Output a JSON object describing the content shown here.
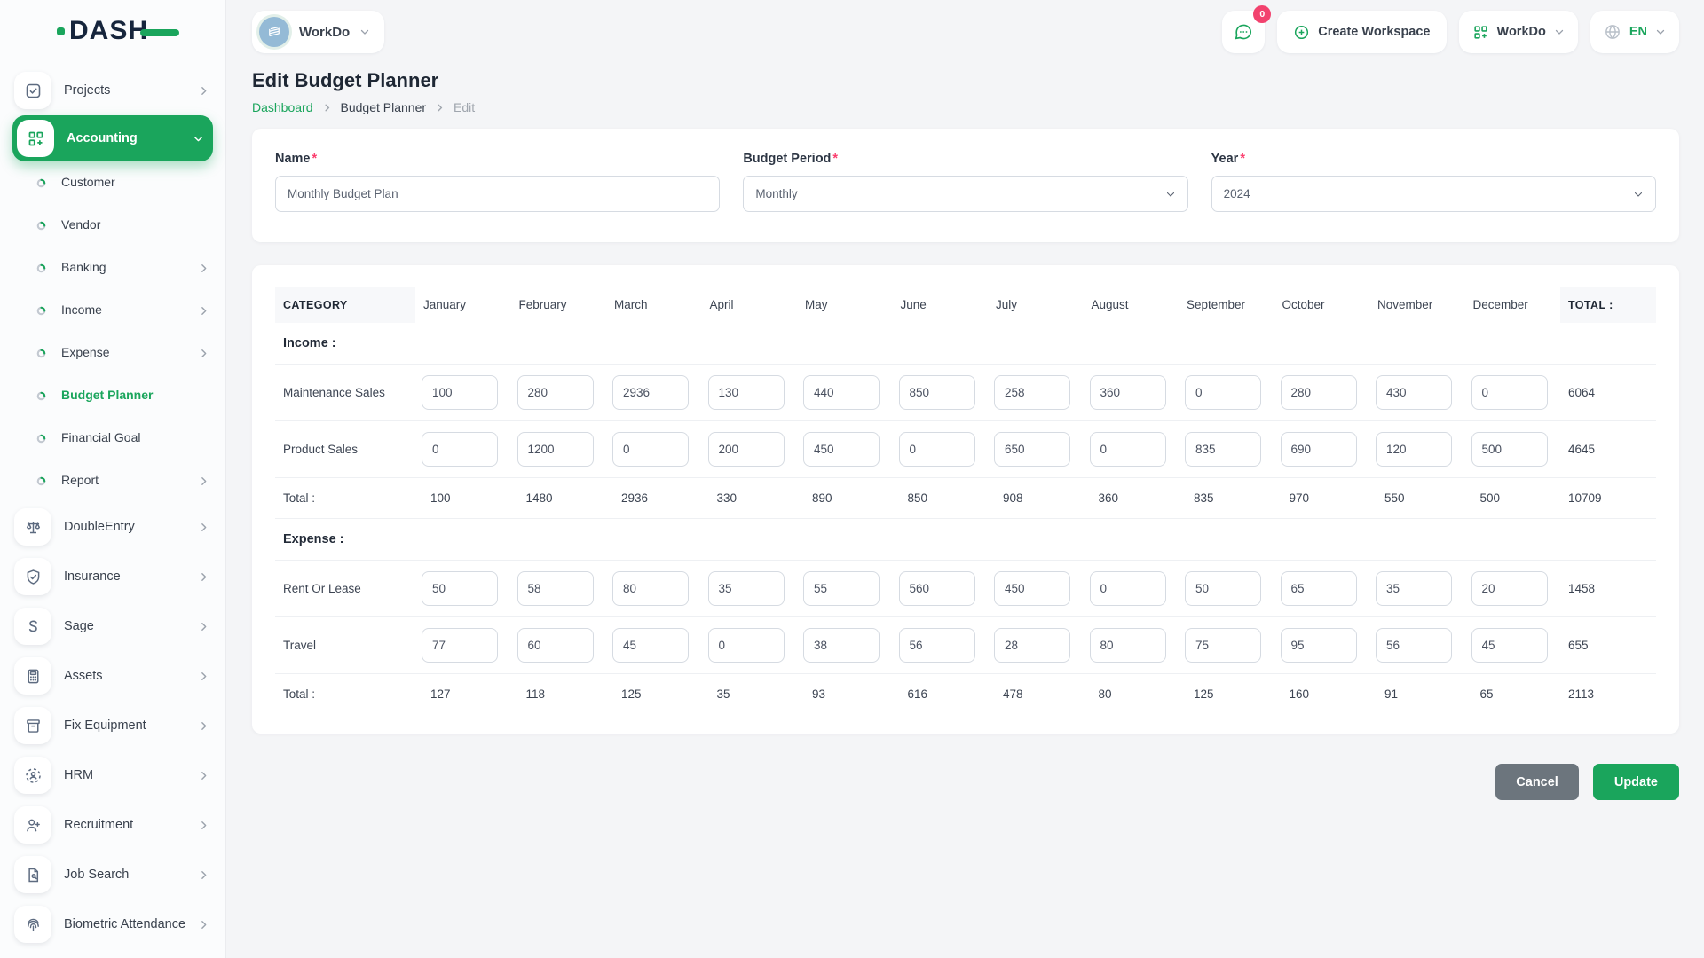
{
  "brand": {
    "logo_text": "DASH"
  },
  "topbar": {
    "workspace_selector": "WorkDo",
    "messages_badge": "0",
    "create_workspace_label": "Create Workspace",
    "workspace_menu_label": "WorkDo",
    "language_label": "EN"
  },
  "sidebar": {
    "items": [
      {
        "label": "Projects",
        "icon": "checkbox-icon",
        "level": "top",
        "chevron": "right",
        "active": false
      },
      {
        "label": "Accounting",
        "icon": "grid-plus-icon",
        "level": "top",
        "chevron": "down",
        "active": true
      },
      {
        "label": "Customer",
        "icon": "bullet-icon",
        "level": "sub",
        "chevron": "",
        "active": false
      },
      {
        "label": "Vendor",
        "icon": "bullet-icon",
        "level": "sub",
        "chevron": "",
        "active": false
      },
      {
        "label": "Banking",
        "icon": "bullet-icon",
        "level": "sub",
        "chevron": "right",
        "active": false
      },
      {
        "label": "Income",
        "icon": "bullet-icon",
        "level": "sub",
        "chevron": "right",
        "active": false
      },
      {
        "label": "Expense",
        "icon": "bullet-icon",
        "level": "sub",
        "chevron": "right",
        "active": false
      },
      {
        "label": "Budget Planner",
        "icon": "bullet-icon",
        "level": "sub",
        "chevron": "",
        "active": true
      },
      {
        "label": "Financial Goal",
        "icon": "bullet-icon",
        "level": "sub",
        "chevron": "",
        "active": false
      },
      {
        "label": "Report",
        "icon": "bullet-icon",
        "level": "sub",
        "chevron": "right",
        "active": false
      },
      {
        "label": "DoubleEntry",
        "icon": "scales-icon",
        "level": "top",
        "chevron": "right",
        "active": false
      },
      {
        "label": "Insurance",
        "icon": "shield-check-icon",
        "level": "top",
        "chevron": "right",
        "active": false
      },
      {
        "label": "Sage",
        "icon": "letter-s-icon",
        "level": "top",
        "chevron": "right",
        "active": false
      },
      {
        "label": "Assets",
        "icon": "calculator-icon",
        "level": "top",
        "chevron": "right",
        "active": false
      },
      {
        "label": "Fix Equipment",
        "icon": "archive-box-icon",
        "level": "top",
        "chevron": "right",
        "active": false
      },
      {
        "label": "HRM",
        "icon": "user-focus-icon",
        "level": "top",
        "chevron": "right",
        "active": false
      },
      {
        "label": "Recruitment",
        "icon": "user-plus-icon",
        "level": "top",
        "chevron": "right",
        "active": false
      },
      {
        "label": "Job Search",
        "icon": "file-search-icon",
        "level": "top",
        "chevron": "right",
        "active": false
      },
      {
        "label": "Biometric Attendance",
        "icon": "fingerprint-icon",
        "level": "top",
        "chevron": "right",
        "active": false
      }
    ]
  },
  "page": {
    "title": "Edit Budget Planner",
    "breadcrumb": {
      "home": "Dashboard",
      "section": "Budget Planner",
      "current": "Edit"
    }
  },
  "form": {
    "required_marker": "*",
    "name": {
      "label": "Name",
      "value": "Monthly Budget Plan"
    },
    "budget_period": {
      "label": "Budget Period",
      "value": "Monthly"
    },
    "year": {
      "label": "Year",
      "value": "2024"
    }
  },
  "table": {
    "category_header": "CATEGORY",
    "total_header": "TOTAL :",
    "months": [
      "January",
      "February",
      "March",
      "April",
      "May",
      "June",
      "July",
      "August",
      "September",
      "October",
      "November",
      "December"
    ],
    "sections": [
      {
        "name": "Income :",
        "rows": [
          {
            "label": "Maintenance Sales",
            "values": [
              100,
              280,
              2936,
              130,
              440,
              850,
              258,
              360,
              0,
              280,
              430,
              0
            ],
            "total": 6064
          },
          {
            "label": "Product Sales",
            "values": [
              0,
              1200,
              0,
              200,
              450,
              0,
              650,
              0,
              835,
              690,
              120,
              500
            ],
            "total": 4645
          }
        ],
        "total_row": {
          "label": "Total :",
          "values": [
            100,
            1480,
            2936,
            330,
            890,
            850,
            908,
            360,
            835,
            970,
            550,
            500
          ],
          "total": 10709
        }
      },
      {
        "name": "Expense :",
        "rows": [
          {
            "label": "Rent Or Lease",
            "values": [
              50,
              58,
              80,
              35,
              55,
              560,
              450,
              0,
              50,
              65,
              35,
              20
            ],
            "total": 1458
          },
          {
            "label": "Travel",
            "values": [
              77,
              60,
              45,
              0,
              38,
              56,
              28,
              80,
              75,
              95,
              56,
              45
            ],
            "total": 655
          }
        ],
        "total_row": {
          "label": "Total :",
          "values": [
            127,
            118,
            125,
            35,
            93,
            616,
            478,
            80,
            125,
            160,
            91,
            65
          ],
          "total": 2113
        }
      }
    ]
  },
  "actions": {
    "cancel": "Cancel",
    "update": "Update"
  },
  "colors": {
    "accent": "#1aa55c",
    "badge": "#f2426e",
    "required": "#fb3e6e",
    "cancel": "#6c757d"
  }
}
